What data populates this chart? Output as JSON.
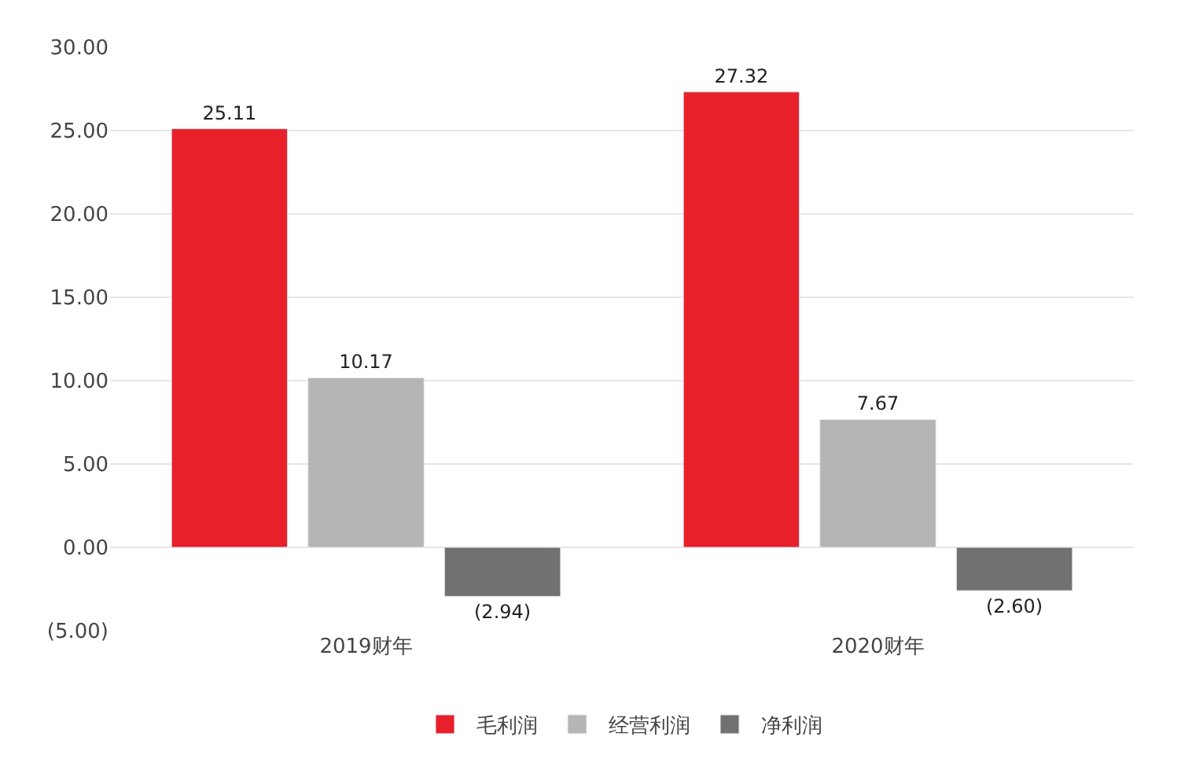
{
  "chart_data": {
    "type": "bar",
    "categories": [
      "2019财年",
      "2020财年"
    ],
    "series": [
      {
        "name": "毛利润",
        "color": "#e8202a",
        "values": [
          25.11,
          27.32
        ],
        "value_labels": [
          "25.11",
          "27.32"
        ]
      },
      {
        "name": "经营利润",
        "color": "#b5b5b5",
        "values": [
          10.17,
          7.67
        ],
        "value_labels": [
          "10.17",
          "7.67"
        ]
      },
      {
        "name": "净利润",
        "color": "#717171",
        "values": [
          -2.94,
          -2.6
        ],
        "value_labels": [
          "(2.94)",
          "(2.60)"
        ]
      }
    ],
    "ylim": [
      -5,
      30
    ],
    "yticks": [
      {
        "value": -5,
        "label": "(5.00)"
      },
      {
        "value": 0,
        "label": "0.00"
      },
      {
        "value": 5,
        "label": "5.00"
      },
      {
        "value": 10,
        "label": "10.00"
      },
      {
        "value": 15,
        "label": "15.00"
      },
      {
        "value": 20,
        "label": "20.00"
      },
      {
        "value": 25,
        "label": "25.00"
      },
      {
        "value": 30,
        "label": "30.00"
      }
    ],
    "grid": "y",
    "legend": "bottom"
  }
}
